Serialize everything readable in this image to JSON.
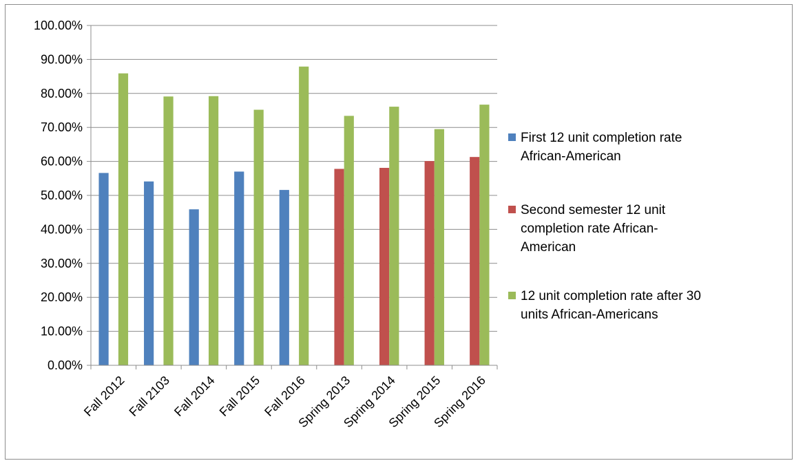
{
  "chart_data": {
    "type": "bar",
    "title": "",
    "xlabel": "",
    "ylabel": "",
    "ylim": [
      0,
      1
    ],
    "y_ticks": [
      0,
      0.1,
      0.2,
      0.3,
      0.4,
      0.5,
      0.6,
      0.7,
      0.8,
      0.9,
      1.0
    ],
    "y_tick_labels": [
      "0.00%",
      "10.00%",
      "20.00%",
      "30.00%",
      "40.00%",
      "50.00%",
      "60.00%",
      "70.00%",
      "80.00%",
      "90.00%",
      "100.00%"
    ],
    "grid": true,
    "legend_position": "right",
    "categories": [
      "Fall 2012",
      "Fall 2103",
      "Fall 2014",
      "Fall 2015",
      "Fall 2016",
      "Spring 2013",
      "Spring 2014",
      "Spring 2015",
      "Spring 2016"
    ],
    "series": [
      {
        "name": "First 12 unit completion rate African-American",
        "legend_lines": [
          "First 12 unit completion rate",
          "African-American"
        ],
        "color": "#4f81bd",
        "values": [
          0.566,
          0.541,
          0.459,
          0.57,
          0.516,
          null,
          null,
          null,
          null
        ]
      },
      {
        "name": "Second semester 12 unit completion rate African-American",
        "legend_lines": [
          "Second semester 12 unit",
          "completion rate African-",
          "American"
        ],
        "color": "#c0504d",
        "values": [
          null,
          null,
          null,
          null,
          null,
          0.578,
          0.581,
          0.601,
          0.613
        ]
      },
      {
        "name": "12 unit completion rate after 30 units African-Americans",
        "legend_lines": [
          "12 unit completion rate after 30",
          "units African-Americans"
        ],
        "color": "#9bbb59",
        "values": [
          0.859,
          0.791,
          0.792,
          0.752,
          0.879,
          0.734,
          0.761,
          0.695,
          0.767
        ]
      }
    ]
  }
}
